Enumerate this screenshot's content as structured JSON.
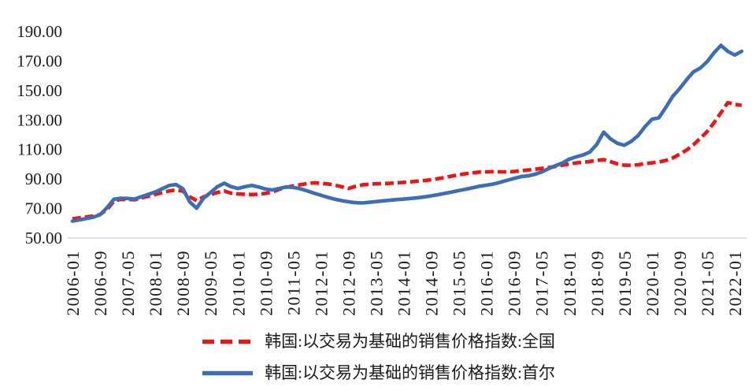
{
  "figure": {
    "background": "#FFFFFF",
    "text_color": "#1a1a1a",
    "axis_line_color": "#D6D6D6"
  },
  "chart_data": {
    "type": "line",
    "title": "",
    "xlabel": "",
    "ylabel": "",
    "ylim": [
      50,
      190
    ],
    "grid": false,
    "legend_position": "bottom",
    "y_tick_labels": [
      "190.00",
      "170.00",
      "150.00",
      "130.00",
      "110.00",
      "90.00",
      "70.00",
      "50.00"
    ],
    "x_tick_labels": [
      "2006-01",
      "2006-09",
      "2007-05",
      "2008-01",
      "2008-09",
      "2009-05",
      "2010-01",
      "2010-09",
      "2011-05",
      "2012-01",
      "2012-09",
      "2013-05",
      "2014-01",
      "2014-09",
      "2015-05",
      "2016-01",
      "2016-09",
      "2017-05",
      "2018-01",
      "2018-09",
      "2019-05",
      "2020-01",
      "2020-09",
      "2021-05",
      "2022-01"
    ],
    "x": [
      "2006-01",
      "2006-03",
      "2006-05",
      "2006-07",
      "2006-09",
      "2006-11",
      "2007-01",
      "2007-03",
      "2007-05",
      "2007-07",
      "2007-09",
      "2007-11",
      "2008-01",
      "2008-03",
      "2008-05",
      "2008-07",
      "2008-09",
      "2008-11",
      "2009-01",
      "2009-03",
      "2009-05",
      "2009-07",
      "2009-09",
      "2009-11",
      "2010-01",
      "2010-03",
      "2010-05",
      "2010-07",
      "2010-09",
      "2010-11",
      "2011-01",
      "2011-03",
      "2011-05",
      "2011-07",
      "2011-09",
      "2011-11",
      "2012-01",
      "2012-03",
      "2012-05",
      "2012-07",
      "2012-09",
      "2012-11",
      "2013-01",
      "2013-03",
      "2013-05",
      "2013-07",
      "2013-09",
      "2013-11",
      "2014-01",
      "2014-03",
      "2014-05",
      "2014-07",
      "2014-09",
      "2014-11",
      "2015-01",
      "2015-03",
      "2015-05",
      "2015-07",
      "2015-09",
      "2015-11",
      "2016-01",
      "2016-03",
      "2016-05",
      "2016-07",
      "2016-09",
      "2016-11",
      "2017-01",
      "2017-03",
      "2017-05",
      "2017-07",
      "2017-09",
      "2017-11",
      "2018-01",
      "2018-03",
      "2018-05",
      "2018-07",
      "2018-09",
      "2018-11",
      "2019-01",
      "2019-03",
      "2019-05",
      "2019-07",
      "2019-09",
      "2019-11",
      "2020-01",
      "2020-03",
      "2020-05",
      "2020-07",
      "2020-09",
      "2020-11",
      "2021-01",
      "2021-03",
      "2021-05",
      "2021-07",
      "2021-09",
      "2021-11",
      "2022-01",
      "2022-03"
    ],
    "series": [
      {
        "name": "韩国:以交易为基础的销售价格指数:全国",
        "color": "#ED1515",
        "line_style": "dashed",
        "values": [
          63.0,
          63.7,
          64.3,
          64.9,
          65.9,
          69.3,
          75.0,
          76.3,
          76.2,
          75.9,
          77.2,
          78.4,
          79.6,
          80.8,
          81.9,
          82.6,
          81.8,
          78.0,
          75.4,
          77.9,
          79.4,
          80.9,
          81.9,
          80.4,
          79.9,
          79.6,
          79.5,
          79.7,
          80.3,
          81.3,
          83.0,
          84.4,
          85.3,
          86.1,
          86.9,
          87.4,
          87.1,
          86.7,
          85.9,
          84.8,
          83.6,
          85.0,
          86.0,
          86.5,
          86.8,
          86.9,
          87.1,
          87.4,
          87.7,
          88.1,
          88.6,
          89.0,
          89.5,
          90.3,
          91.1,
          92.0,
          92.9,
          93.6,
          94.2,
          94.7,
          94.9,
          95.0,
          94.9,
          94.8,
          95.1,
          95.7,
          96.1,
          96.6,
          97.2,
          97.8,
          98.5,
          99.4,
          100.2,
          100.9,
          101.4,
          101.9,
          102.7,
          103.1,
          101.8,
          100.3,
          99.4,
          99.3,
          99.7,
          100.5,
          101.0,
          101.6,
          102.6,
          104.3,
          106.8,
          109.6,
          113.2,
          117.6,
          122.2,
          128.2,
          135.0,
          141.8,
          140.6,
          140.0
        ]
      },
      {
        "name": "韩国:以交易为基础的销售价格指数:首尔",
        "color": "#3D6EB5",
        "line_style": "solid",
        "values": [
          61.5,
          62.3,
          63.2,
          64.1,
          65.8,
          70.5,
          76.3,
          77.0,
          76.8,
          76.4,
          78.0,
          79.6,
          81.2,
          83.4,
          85.6,
          86.3,
          83.5,
          74.5,
          70.2,
          77.0,
          80.8,
          84.8,
          87.2,
          84.8,
          83.6,
          84.8,
          85.7,
          84.6,
          83.2,
          82.6,
          83.6,
          84.7,
          84.3,
          83.4,
          82.0,
          80.4,
          79.0,
          77.6,
          76.4,
          75.4,
          74.6,
          74.0,
          73.8,
          74.2,
          74.7,
          75.2,
          75.6,
          76.1,
          76.4,
          76.8,
          77.3,
          77.9,
          78.6,
          79.4,
          80.3,
          81.2,
          82.2,
          83.1,
          84.1,
          85.1,
          85.8,
          86.6,
          87.8,
          89.1,
          90.4,
          91.6,
          92.1,
          93.1,
          94.8,
          97.0,
          99.0,
          100.8,
          103.5,
          105.0,
          106.3,
          108.3,
          113.5,
          121.8,
          117.2,
          114.2,
          112.9,
          115.5,
          119.5,
          125.5,
          130.5,
          131.5,
          138.5,
          146.0,
          151.2,
          157.2,
          162.6,
          165.2,
          169.6,
          175.6,
          180.6,
          176.6,
          174.0,
          176.6
        ]
      }
    ]
  }
}
